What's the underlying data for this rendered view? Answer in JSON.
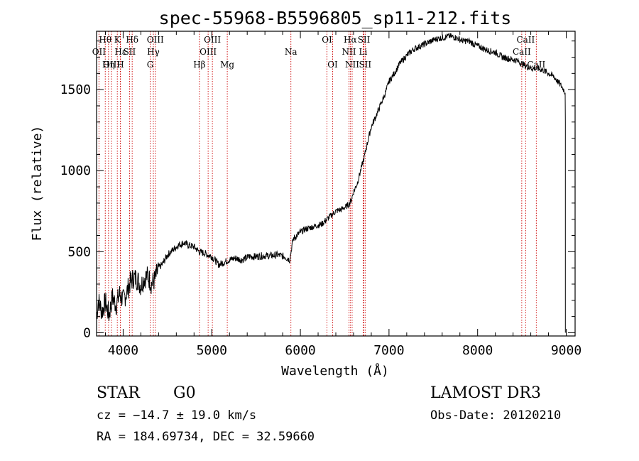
{
  "chart_data": {
    "type": "line",
    "title": "spec-55968-B5596805_sp11-212.fits",
    "xlabel": "Wavelength (Å)",
    "ylabel": "Flux (relative)",
    "xlim": [
      3700,
      9100
    ],
    "ylim": [
      -20,
      1860
    ],
    "xticks": [
      4000,
      5000,
      6000,
      7000,
      8000,
      9000
    ],
    "yticks": [
      0,
      500,
      1000,
      1500
    ],
    "series": [
      {
        "name": "flux",
        "x": [
          3700,
          3720,
          3760,
          3800,
          3840,
          3880,
          3920,
          3960,
          4000,
          4040,
          4080,
          4120,
          4160,
          4200,
          4240,
          4280,
          4320,
          4360,
          4400,
          4440,
          4500,
          4560,
          4620,
          4680,
          4740,
          4800,
          4860,
          4920,
          5000,
          5080,
          5160,
          5200,
          5260,
          5340,
          5420,
          5500,
          5580,
          5660,
          5740,
          5820,
          5880,
          5900,
          5920,
          5960,
          6000,
          6060,
          6120,
          6180,
          6240,
          6300,
          6340,
          6400,
          6460,
          6520,
          6560,
          6580,
          6600,
          6640,
          6680,
          6720,
          6760,
          6800,
          6840,
          6900,
          6960,
          7000,
          7060,
          7120,
          7200,
          7280,
          7360,
          7440,
          7520,
          7600,
          7680,
          7760,
          7840,
          7900,
          7960,
          8040,
          8120,
          8200,
          8280,
          8360,
          8440,
          8500,
          8560,
          8620,
          8680,
          8740,
          8800,
          8860,
          8920,
          8960,
          8990
        ],
        "y": [
          100,
          200,
          130,
          190,
          110,
          220,
          170,
          240,
          200,
          250,
          310,
          340,
          330,
          290,
          340,
          350,
          300,
          330,
          400,
          420,
          480,
          510,
          540,
          555,
          540,
          530,
          500,
          490,
          470,
          420,
          440,
          450,
          460,
          450,
          470,
          470,
          475,
          475,
          480,
          470,
          450,
          520,
          580,
          600,
          620,
          640,
          650,
          660,
          670,
          700,
          720,
          750,
          760,
          780,
          800,
          830,
          870,
          920,
          1000,
          1080,
          1180,
          1270,
          1320,
          1400,
          1480,
          1550,
          1600,
          1660,
          1710,
          1750,
          1770,
          1790,
          1810,
          1820,
          1830,
          1820,
          1800,
          1800,
          1780,
          1760,
          1740,
          1730,
          1700,
          1690,
          1680,
          1660,
          1640,
          1630,
          1630,
          1620,
          1600,
          1580,
          1540,
          1510,
          1480
        ]
      }
    ],
    "lines": [
      {
        "label": "Hθ",
        "wave": 3798,
        "row": 0
      },
      {
        "label": "OII",
        "wave": 3727,
        "row": 1
      },
      {
        "label": "OIII",
        "wave": 3869,
        "row": 2
      },
      {
        "label": "K",
        "wave": 3934,
        "row": 0
      },
      {
        "label": "Hε",
        "wave": 3970,
        "row": 1
      },
      {
        "label": "Hη",
        "wave": 3835,
        "row": 2
      },
      {
        "label": "H",
        "wave": 3968,
        "row": 2
      },
      {
        "label": "Hδ",
        "wave": 4102,
        "row": 0
      },
      {
        "label": "SII",
        "wave": 4072,
        "row": 1
      },
      {
        "label": "OIII",
        "wave": 4363,
        "row": 0
      },
      {
        "label": "Hγ",
        "wave": 4341,
        "row": 1
      },
      {
        "label": "G",
        "wave": 4305,
        "row": 2
      },
      {
        "label": "OIII",
        "wave": 5007,
        "row": 0
      },
      {
        "label": "OIII",
        "wave": 4959,
        "row": 1
      },
      {
        "label": "Hβ",
        "wave": 4861,
        "row": 2
      },
      {
        "label": "Mg",
        "wave": 5175,
        "row": 2
      },
      {
        "label": "Na",
        "wave": 5893,
        "row": 1
      },
      {
        "label": "OI",
        "wave": 6300,
        "row": 0
      },
      {
        "label": "OI",
        "wave": 6364,
        "row": 2
      },
      {
        "label": "Hα",
        "wave": 6563,
        "row": 0
      },
      {
        "label": "SII",
        "wave": 6717,
        "row": 0
      },
      {
        "label": "NII",
        "wave": 6548,
        "row": 1
      },
      {
        "label": "Li",
        "wave": 6708,
        "row": 1
      },
      {
        "label": "NII",
        "wave": 6584,
        "row": 2
      },
      {
        "label": "SII",
        "wave": 6731,
        "row": 2
      },
      {
        "label": "CaII",
        "wave": 8542,
        "row": 0
      },
      {
        "label": "CaII",
        "wave": 8498,
        "row": 1
      },
      {
        "label": "CaII",
        "wave": 8662,
        "row": 2
      }
    ]
  },
  "info": {
    "class_label": "STAR",
    "subclass": "G0",
    "survey": "LAMOST DR3",
    "cz": "cz = −14.7 ± 19.0 km/s",
    "obs_date": "Obs-Date: 20120210",
    "coords": "RA = 184.69734, DEC =  32.59660"
  },
  "colors": {
    "line_markers": "#cc0000",
    "spectrum": "#000000",
    "axes": "#000000",
    "background": "#ffffff"
  }
}
